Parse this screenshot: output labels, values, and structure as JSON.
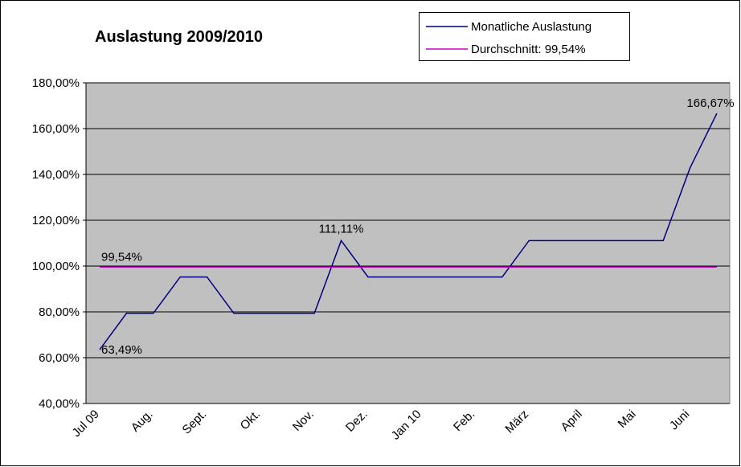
{
  "chart_data": {
    "type": "line",
    "title": "Auslastung 2009/2010",
    "categories": [
      "Jul 09",
      null,
      "Aug.",
      null,
      "Sept.",
      null,
      "Okt.",
      null,
      "Nov.",
      null,
      "Dez.",
      null,
      "Jan 10",
      null,
      "Feb.",
      null,
      "März",
      null,
      "April",
      null,
      "Mai",
      null,
      "Juni",
      null
    ],
    "series": [
      {
        "name": "Monatliche Auslastung",
        "color": "#000080",
        "values": [
          63.49,
          79.37,
          79.37,
          95.24,
          95.24,
          79.37,
          79.37,
          79.37,
          79.37,
          111.11,
          95.24,
          95.24,
          95.24,
          95.24,
          95.24,
          95.24,
          111.11,
          111.11,
          111.11,
          111.11,
          111.11,
          111.11,
          142.86,
          166.67
        ],
        "value_labels": [
          "63,49%",
          null,
          null,
          null,
          null,
          null,
          null,
          null,
          null,
          "111,11%",
          null,
          null,
          null,
          null,
          null,
          null,
          null,
          null,
          null,
          null,
          null,
          null,
          null,
          "166,67%"
        ]
      },
      {
        "name": "Durchschnitt: 99,54%",
        "color": "#cc00cc",
        "values": [
          99.54,
          99.54,
          99.54,
          99.54,
          99.54,
          99.54,
          99.54,
          99.54,
          99.54,
          99.54,
          99.54,
          99.54,
          99.54,
          99.54,
          99.54,
          99.54,
          99.54,
          99.54,
          99.54,
          99.54,
          99.54,
          99.54,
          99.54,
          99.54
        ],
        "value_labels": [
          "99,54%",
          null,
          null,
          null,
          null,
          null,
          null,
          null,
          null,
          null,
          null,
          null,
          null,
          null,
          null,
          null,
          null,
          null,
          null,
          null,
          null,
          null,
          null,
          null
        ]
      }
    ],
    "ylim": [
      40,
      180
    ],
    "yticks": [
      {
        "value": 40,
        "label": "40,00%"
      },
      {
        "value": 60,
        "label": "60,00%"
      },
      {
        "value": 80,
        "label": "80,00%"
      },
      {
        "value": 100,
        "label": "100,00%"
      },
      {
        "value": 120,
        "label": "120,00%"
      },
      {
        "value": 140,
        "label": "140,00%"
      },
      {
        "value": 160,
        "label": "160,00%"
      },
      {
        "value": 180,
        "label": "180,00%"
      }
    ],
    "grid": true,
    "legend": "top-right"
  }
}
